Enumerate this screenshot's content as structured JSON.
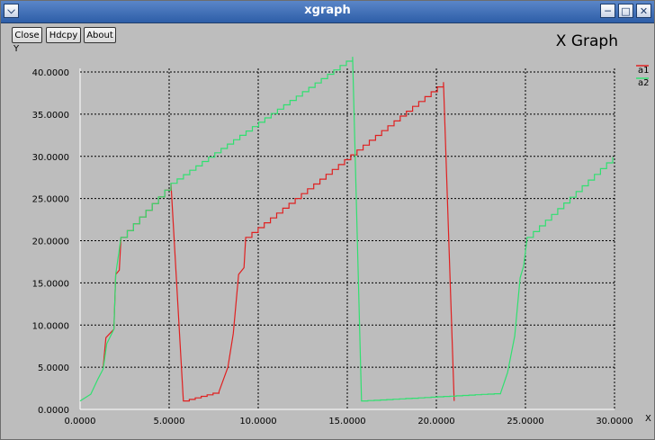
{
  "window": {
    "title": "xgraph",
    "titlebar_color": "#2d5ea8",
    "menu_icon": "chevron-down-icon",
    "controls": [
      "minimize-icon",
      "maximize-icon",
      "close-icon"
    ]
  },
  "toolbar": {
    "close_label": "Close",
    "hdcpy_label": "Hdcpy",
    "about_label": "About"
  },
  "chart_data": {
    "type": "line",
    "title": "X Graph",
    "xlabel": "X",
    "ylabel": "Y",
    "xlim": [
      0,
      30
    ],
    "ylim": [
      0,
      40
    ],
    "grid": true,
    "background": "#bdbdbd",
    "legend_position": "top-right",
    "x_ticks": [
      0,
      5,
      10,
      15,
      20,
      25,
      30
    ],
    "x_tick_labels": [
      "0.0000",
      "5.0000",
      "10.0000",
      "15.0000",
      "20.0000",
      "25.0000",
      "30.0000"
    ],
    "y_ticks": [
      0,
      5,
      10,
      15,
      20,
      25,
      30,
      35,
      40
    ],
    "y_tick_labels": [
      "0.0000",
      "5.0000",
      "10.0000",
      "15.0000",
      "20.0000",
      "25.0000",
      "30.0000",
      "35.0000",
      "40.0000"
    ],
    "series": [
      {
        "name": "a1",
        "color": "#e02020",
        "points": [
          [
            1.3,
            5.0
          ],
          [
            1.45,
            8.5
          ],
          [
            1.9,
            9.5
          ],
          [
            2.0,
            16.0
          ],
          [
            2.2,
            16.5
          ],
          [
            2.3,
            20.4
          ],
          [
            5.1,
            26.8
          ],
          [
            5.8,
            1.0
          ],
          [
            7.8,
            2.1
          ],
          [
            8.3,
            5.0
          ],
          [
            8.6,
            9.0
          ],
          [
            8.9,
            16.0
          ],
          [
            9.2,
            16.8
          ],
          [
            9.3,
            20.4
          ],
          [
            20.4,
            38.8
          ],
          [
            21.0,
            1.0
          ]
        ]
      },
      {
        "name": "a2",
        "color": "#30e070",
        "points": [
          [
            0.0,
            1.0
          ],
          [
            0.6,
            1.8
          ],
          [
            1.0,
            3.6
          ],
          [
            1.3,
            4.8
          ],
          [
            1.5,
            7.8
          ],
          [
            1.9,
            9.5
          ],
          [
            2.0,
            16.0
          ],
          [
            2.3,
            20.4
          ],
          [
            5.1,
            26.8
          ],
          [
            15.3,
            41.8
          ],
          [
            15.8,
            1.0
          ],
          [
            23.6,
            1.9
          ],
          [
            24.0,
            4.4
          ],
          [
            24.4,
            8.7
          ],
          [
            24.7,
            15.6
          ],
          [
            24.9,
            17.0
          ],
          [
            25.1,
            20.4
          ],
          [
            29.9,
            29.9
          ]
        ]
      }
    ]
  }
}
